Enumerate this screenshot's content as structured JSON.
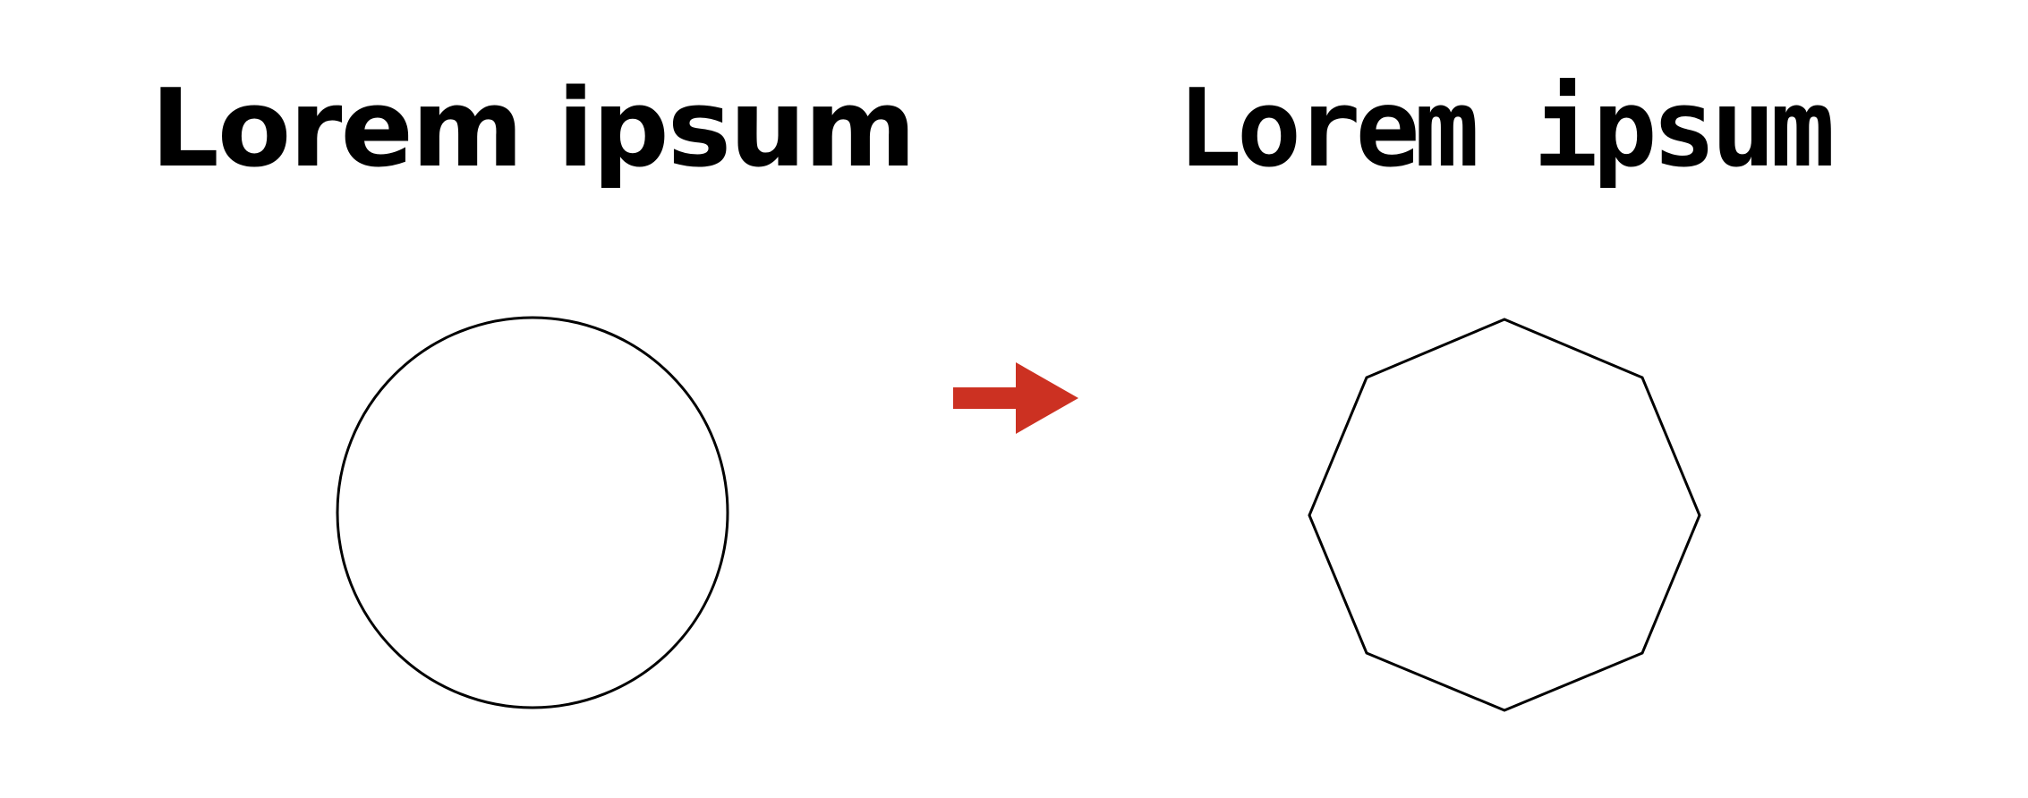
{
  "left": {
    "heading": "Lorem ipsum",
    "shape_icon": "circle-outline"
  },
  "right": {
    "heading": "Lorem ipsum",
    "shape_icon": "octagon-outline"
  },
  "arrow": {
    "icon": "arrow-right-icon",
    "color": "#cc3122"
  },
  "colors": {
    "stroke": "#000000",
    "background": "#ffffff"
  }
}
